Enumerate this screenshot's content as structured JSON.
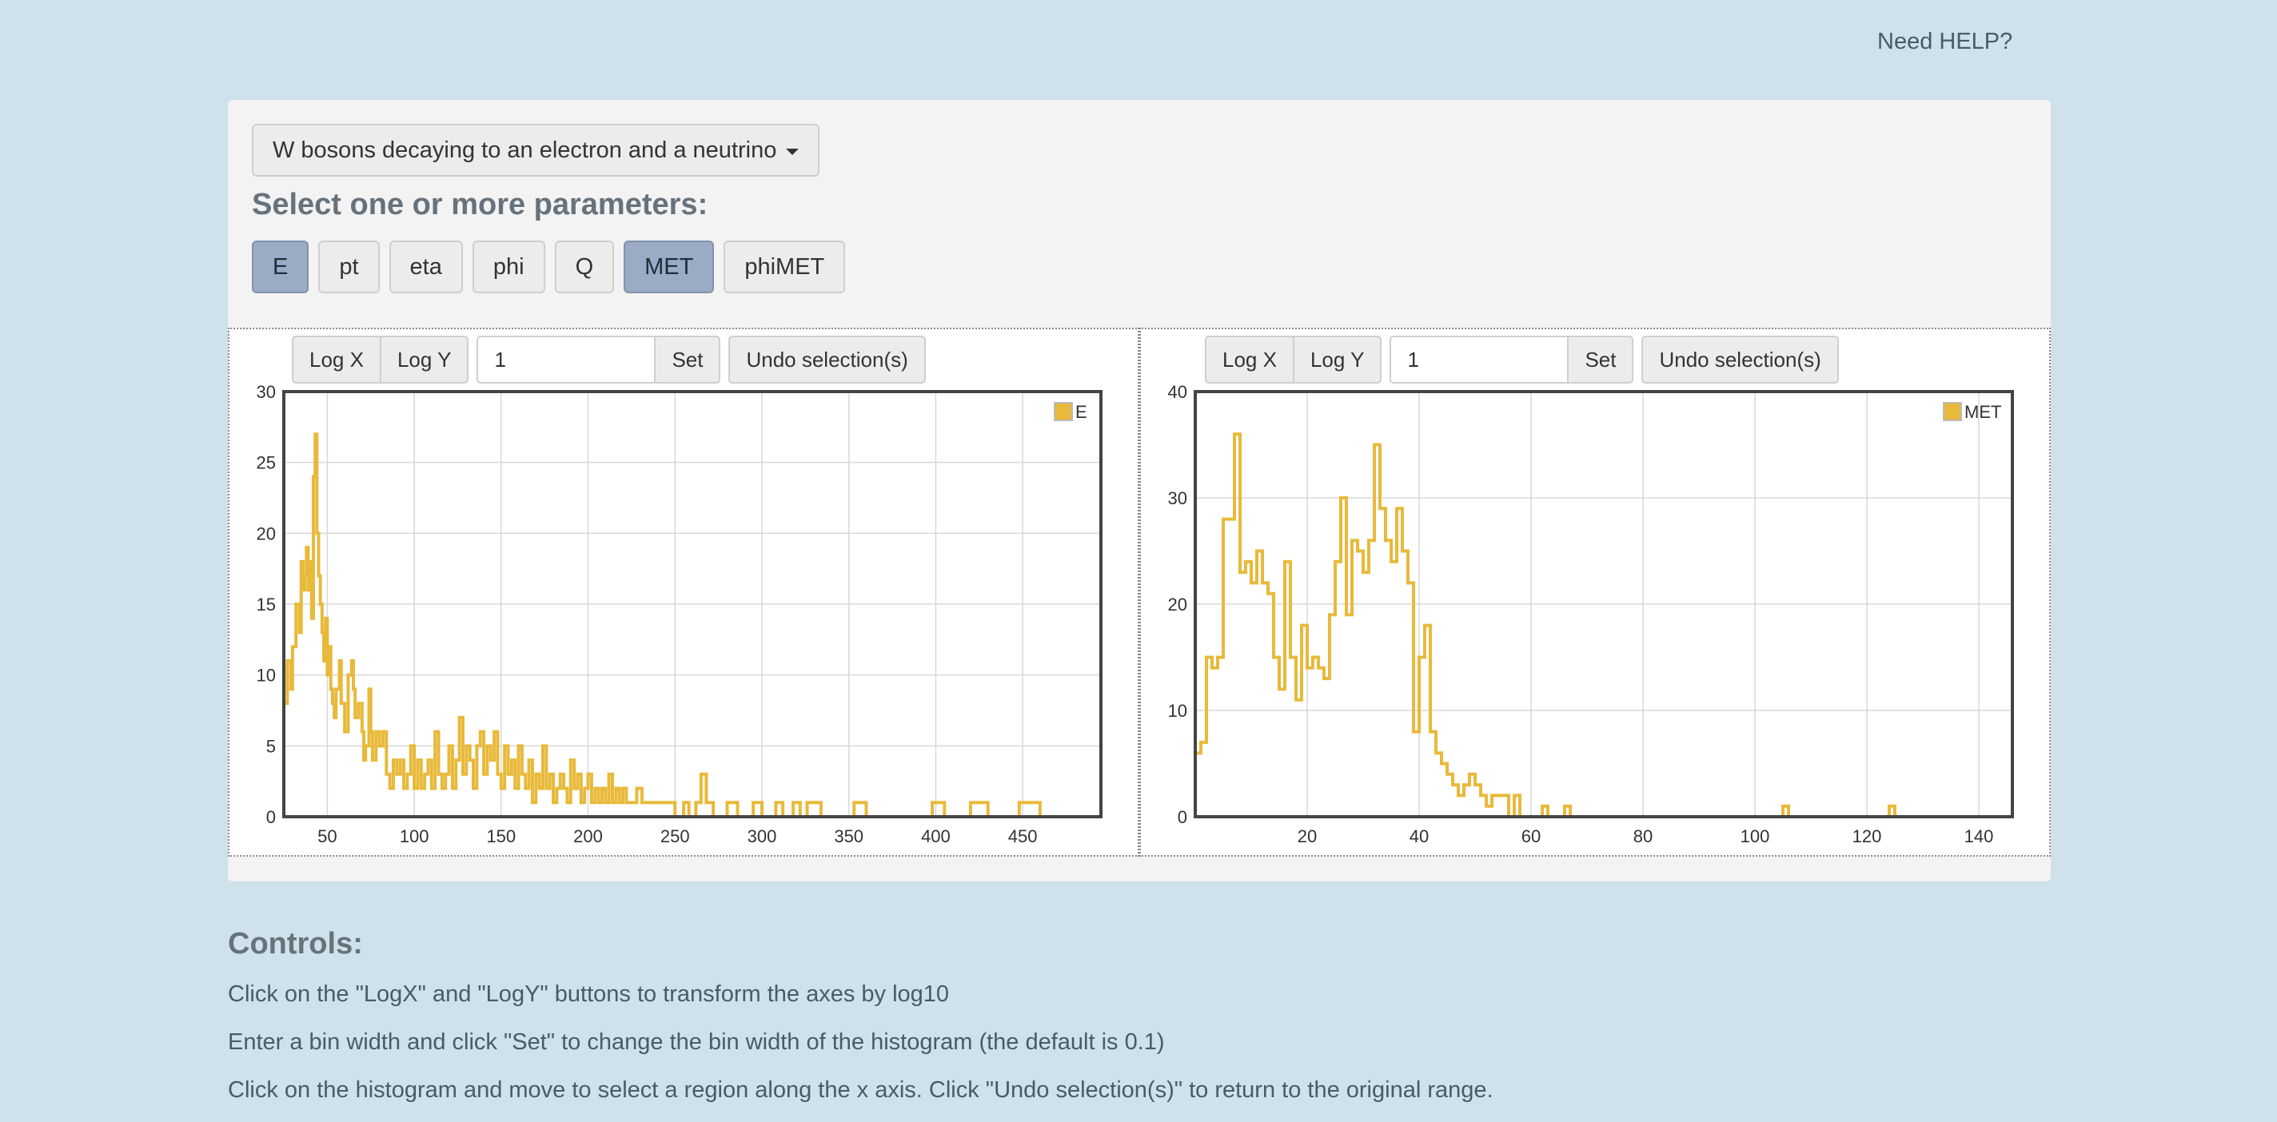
{
  "header": {
    "help_label": "Need HELP?"
  },
  "dataset": {
    "selected": "W bosons decaying to an electron and a neutrino"
  },
  "params": {
    "heading": "Select one or more parameters:",
    "buttons": [
      {
        "label": "E",
        "active": true
      },
      {
        "label": "pt",
        "active": false
      },
      {
        "label": "eta",
        "active": false
      },
      {
        "label": "phi",
        "active": false
      },
      {
        "label": "Q",
        "active": false
      },
      {
        "label": "MET",
        "active": true
      },
      {
        "label": "phiMET",
        "active": false
      }
    ]
  },
  "toolbar": {
    "logx_label": "Log X",
    "logy_label": "Log Y",
    "bin_value": "1",
    "set_label": "Set",
    "undo_label": "Undo selection(s)"
  },
  "colors": {
    "series": "#e8b93a",
    "active_button": "#9aabc3"
  },
  "chart_data": [
    {
      "type": "histogram",
      "legend": "E",
      "legend_position": "top-right",
      "grid": true,
      "xlim": [
        25,
        495
      ],
      "ylim": [
        0,
        30
      ],
      "xticks": [
        50,
        100,
        150,
        200,
        250,
        300,
        350,
        400,
        450
      ],
      "yticks": [
        0,
        5,
        10,
        15,
        20,
        25,
        30
      ],
      "points": [
        [
          25,
          8
        ],
        [
          27,
          11
        ],
        [
          29,
          9
        ],
        [
          30,
          12
        ],
        [
          32,
          15
        ],
        [
          34,
          13
        ],
        [
          35,
          18
        ],
        [
          36,
          16
        ],
        [
          37,
          17
        ],
        [
          38,
          19
        ],
        [
          39,
          16
        ],
        [
          40,
          18
        ],
        [
          41,
          14
        ],
        [
          42,
          24
        ],
        [
          43,
          27
        ],
        [
          44,
          20
        ],
        [
          45,
          17
        ],
        [
          46,
          15
        ],
        [
          47,
          13
        ],
        [
          48,
          11
        ],
        [
          49,
          14
        ],
        [
          50,
          10
        ],
        [
          51,
          12
        ],
        [
          52,
          9
        ],
        [
          53,
          8
        ],
        [
          54,
          7
        ],
        [
          55,
          9
        ],
        [
          57,
          11
        ],
        [
          58,
          8
        ],
        [
          60,
          6
        ],
        [
          62,
          10
        ],
        [
          64,
          11
        ],
        [
          65,
          9
        ],
        [
          66,
          7
        ],
        [
          68,
          8
        ],
        [
          70,
          6
        ],
        [
          71,
          4
        ],
        [
          72,
          5
        ],
        [
          74,
          9
        ],
        [
          75,
          6
        ],
        [
          76,
          4
        ],
        [
          78,
          6
        ],
        [
          80,
          5
        ],
        [
          82,
          6
        ],
        [
          84,
          3
        ],
        [
          86,
          2
        ],
        [
          88,
          4
        ],
        [
          90,
          3
        ],
        [
          92,
          4
        ],
        [
          94,
          2
        ],
        [
          96,
          3
        ],
        [
          98,
          5
        ],
        [
          100,
          2
        ],
        [
          102,
          4
        ],
        [
          104,
          2
        ],
        [
          106,
          3
        ],
        [
          108,
          4
        ],
        [
          110,
          2
        ],
        [
          112,
          6
        ],
        [
          114,
          3
        ],
        [
          116,
          2
        ],
        [
          118,
          3
        ],
        [
          120,
          5
        ],
        [
          122,
          2
        ],
        [
          124,
          4
        ],
        [
          126,
          7
        ],
        [
          128,
          3
        ],
        [
          130,
          5
        ],
        [
          132,
          4
        ],
        [
          134,
          2
        ],
        [
          136,
          5
        ],
        [
          138,
          6
        ],
        [
          140,
          3
        ],
        [
          142,
          5
        ],
        [
          144,
          4
        ],
        [
          146,
          6
        ],
        [
          148,
          3
        ],
        [
          150,
          2
        ],
        [
          152,
          5
        ],
        [
          154,
          3
        ],
        [
          156,
          4
        ],
        [
          158,
          2
        ],
        [
          160,
          5
        ],
        [
          162,
          3
        ],
        [
          164,
          2
        ],
        [
          166,
          4
        ],
        [
          168,
          1
        ],
        [
          170,
          3
        ],
        [
          172,
          2
        ],
        [
          174,
          5
        ],
        [
          176,
          2
        ],
        [
          178,
          3
        ],
        [
          180,
          1
        ],
        [
          182,
          2
        ],
        [
          184,
          3
        ],
        [
          186,
          2
        ],
        [
          188,
          1
        ],
        [
          190,
          4
        ],
        [
          192,
          2
        ],
        [
          194,
          3
        ],
        [
          196,
          1
        ],
        [
          198,
          2
        ],
        [
          200,
          3
        ],
        [
          202,
          1
        ],
        [
          204,
          2
        ],
        [
          206,
          1
        ],
        [
          208,
          2
        ],
        [
          210,
          1
        ],
        [
          212,
          3
        ],
        [
          214,
          1
        ],
        [
          216,
          2
        ],
        [
          218,
          1
        ],
        [
          220,
          2
        ],
        [
          222,
          1
        ],
        [
          225,
          1
        ],
        [
          228,
          2
        ],
        [
          231,
          1
        ],
        [
          234,
          1
        ],
        [
          237,
          1
        ],
        [
          240,
          1
        ],
        [
          243,
          1
        ],
        [
          246,
          1
        ],
        [
          250,
          0
        ],
        [
          255,
          1
        ],
        [
          258,
          0
        ],
        [
          262,
          1
        ],
        [
          265,
          3
        ],
        [
          268,
          1
        ],
        [
          272,
          0
        ],
        [
          280,
          1
        ],
        [
          286,
          0
        ],
        [
          295,
          1
        ],
        [
          300,
          0
        ],
        [
          308,
          1
        ],
        [
          312,
          0
        ],
        [
          318,
          1
        ],
        [
          322,
          0
        ],
        [
          326,
          1
        ],
        [
          334,
          0
        ],
        [
          353,
          1
        ],
        [
          360,
          0
        ],
        [
          380,
          0
        ],
        [
          398,
          1
        ],
        [
          405,
          0
        ],
        [
          418,
          0
        ],
        [
          420,
          1
        ],
        [
          430,
          0
        ],
        [
          448,
          1
        ],
        [
          460,
          0
        ],
        [
          495,
          1
        ]
      ]
    },
    {
      "type": "histogram",
      "legend": "MET",
      "legend_position": "top-right",
      "grid": true,
      "xlim": [
        0,
        146
      ],
      "ylim": [
        0,
        40
      ],
      "xticks": [
        20,
        40,
        60,
        80,
        100,
        120,
        140
      ],
      "yticks": [
        0,
        10,
        20,
        30,
        40
      ],
      "points": [
        [
          0,
          6
        ],
        [
          1,
          7
        ],
        [
          2,
          15
        ],
        [
          3,
          14
        ],
        [
          4,
          15
        ],
        [
          5,
          28
        ],
        [
          7,
          36
        ],
        [
          8,
          23
        ],
        [
          9,
          24
        ],
        [
          10,
          22
        ],
        [
          11,
          25
        ],
        [
          12,
          22
        ],
        [
          13,
          21
        ],
        [
          14,
          15
        ],
        [
          15,
          12
        ],
        [
          16,
          24
        ],
        [
          17,
          15
        ],
        [
          18,
          11
        ],
        [
          19,
          18
        ],
        [
          20,
          14
        ],
        [
          21,
          15
        ],
        [
          22,
          14
        ],
        [
          23,
          13
        ],
        [
          24,
          19
        ],
        [
          25,
          24
        ],
        [
          26,
          30
        ],
        [
          27,
          19
        ],
        [
          28,
          26
        ],
        [
          29,
          25
        ],
        [
          30,
          23
        ],
        [
          31,
          26
        ],
        [
          32,
          35
        ],
        [
          33,
          29
        ],
        [
          34,
          26
        ],
        [
          35,
          24
        ],
        [
          36,
          29
        ],
        [
          37,
          25
        ],
        [
          38,
          22
        ],
        [
          39,
          8
        ],
        [
          40,
          15
        ],
        [
          41,
          18
        ],
        [
          42,
          8
        ],
        [
          43,
          6
        ],
        [
          44,
          5
        ],
        [
          45,
          4
        ],
        [
          46,
          3
        ],
        [
          47,
          2
        ],
        [
          48,
          3
        ],
        [
          49,
          4
        ],
        [
          50,
          3
        ],
        [
          51,
          2
        ],
        [
          52,
          1
        ],
        [
          53,
          2
        ],
        [
          56,
          0
        ],
        [
          57,
          2
        ],
        [
          58,
          0
        ],
        [
          59,
          0
        ],
        [
          62,
          1
        ],
        [
          63,
          0
        ],
        [
          66,
          1
        ],
        [
          67,
          0
        ],
        [
          105,
          1
        ],
        [
          106,
          0
        ],
        [
          124,
          1
        ],
        [
          125,
          0
        ],
        [
          146,
          1
        ]
      ]
    }
  ],
  "controls": {
    "heading": "Controls:",
    "lines": [
      "Click on the \"LogX\" and \"LogY\" buttons to transform the axes by log10",
      "Enter a bin width and click \"Set\" to change the bin width of the histogram (the default is 0.1)",
      "Click on the histogram and move to select a region along the x axis. Click \"Undo selection(s)\" to return to the original range."
    ]
  }
}
